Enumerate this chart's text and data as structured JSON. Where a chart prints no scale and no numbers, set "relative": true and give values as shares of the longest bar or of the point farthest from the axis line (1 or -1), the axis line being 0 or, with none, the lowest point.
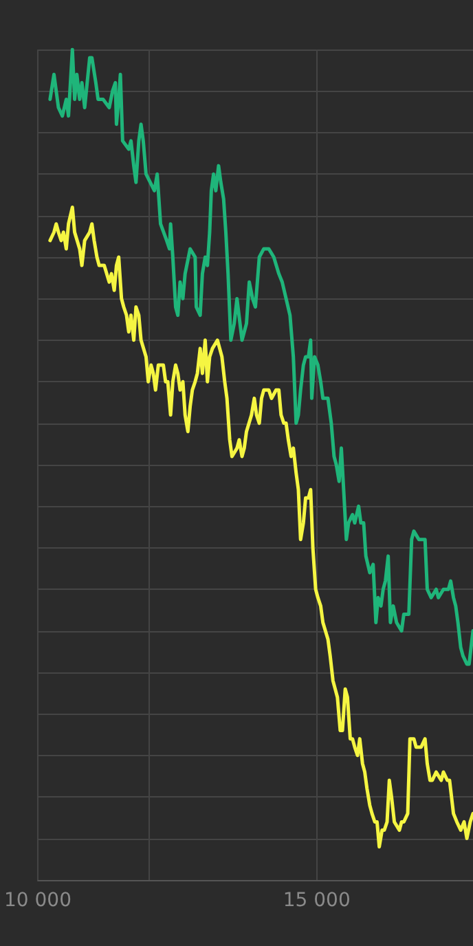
{
  "chart_data": {
    "type": "line",
    "relative": true,
    "grid": true,
    "marker": "none",
    "line_style": "solid",
    "xlim": [
      10000,
      17800
    ],
    "xticks": [
      {
        "value": 10000,
        "label": "10 000"
      },
      {
        "value": 15000,
        "label": "15 000"
      }
    ],
    "series": [
      {
        "color": "#1fb57a",
        "x": [
          10220,
          10290,
          10370,
          10440,
          10510,
          10550,
          10620,
          10660,
          10700,
          10750,
          10790,
          10840,
          10930,
          10970,
          11040,
          11080,
          11170,
          11280,
          11340,
          11390,
          11410,
          11450,
          11480,
          11520,
          11630,
          11670,
          11720,
          11760,
          11810,
          11850,
          11890,
          11940,
          12090,
          12140,
          12200,
          12310,
          12360,
          12380,
          12420,
          12470,
          12510,
          12550,
          12600,
          12640,
          12730,
          12820,
          12840,
          12910,
          12950,
          13000,
          13040,
          13080,
          13110,
          13150,
          13190,
          13240,
          13280,
          13330,
          13370,
          13410,
          13460,
          13520,
          13570,
          13660,
          13740,
          13790,
          13850,
          13900,
          13970,
          14050,
          14140,
          14230,
          14320,
          14380,
          14450,
          14520,
          14580,
          14630,
          14670,
          14710,
          14760,
          14800,
          14850,
          14890,
          14910,
          14960,
          15020,
          15070,
          15110,
          15200,
          15260,
          15310,
          15350,
          15400,
          15440,
          15490,
          15530,
          15570,
          15640,
          15680,
          15750,
          15790,
          15840,
          15880,
          15950,
          16010,
          16060,
          16100,
          16150,
          16190,
          16230,
          16280,
          16320,
          16370,
          16430,
          16520,
          16560,
          16650,
          16700,
          16740,
          16830,
          16870,
          16940,
          16980,
          17050,
          17140,
          17180,
          17270,
          17360,
          17400,
          17450,
          17490,
          17530,
          17580,
          17620,
          17690,
          17730,
          17800
        ],
        "values": [
          0.94,
          0.97,
          0.93,
          0.92,
          0.94,
          0.92,
          1,
          0.94,
          0.97,
          0.94,
          0.96,
          0.93,
          0.99,
          0.99,
          0.96,
          0.94,
          0.94,
          0.93,
          0.95,
          0.96,
          0.91,
          0.94,
          0.97,
          0.89,
          0.88,
          0.89,
          0.86,
          0.84,
          0.89,
          0.91,
          0.89,
          0.85,
          0.83,
          0.85,
          0.79,
          0.77,
          0.76,
          0.79,
          0.75,
          0.69,
          0.68,
          0.72,
          0.7,
          0.73,
          0.76,
          0.75,
          0.69,
          0.68,
          0.73,
          0.75,
          0.74,
          0.78,
          0.83,
          0.85,
          0.83,
          0.86,
          0.84,
          0.82,
          0.78,
          0.73,
          0.65,
          0.67,
          0.7,
          0.65,
          0.67,
          0.72,
          0.7,
          0.69,
          0.75,
          0.76,
          0.76,
          0.75,
          0.73,
          0.72,
          0.7,
          0.68,
          0.63,
          0.55,
          0.56,
          0.59,
          0.62,
          0.63,
          0.63,
          0.65,
          0.58,
          0.63,
          0.62,
          0.6,
          0.58,
          0.58,
          0.55,
          0.51,
          0.5,
          0.48,
          0.52,
          0.46,
          0.41,
          0.43,
          0.44,
          0.43,
          0.45,
          0.43,
          0.43,
          0.39,
          0.37,
          0.38,
          0.31,
          0.34,
          0.33,
          0.35,
          0.36,
          0.39,
          0.31,
          0.33,
          0.31,
          0.3,
          0.32,
          0.32,
          0.41,
          0.42,
          0.41,
          0.41,
          0.41,
          0.35,
          0.34,
          0.35,
          0.34,
          0.35,
          0.35,
          0.36,
          0.34,
          0.33,
          0.31,
          0.28,
          0.27,
          0.26,
          0.26,
          0.3
        ]
      },
      {
        "color": "#f5f542",
        "x": [
          10220,
          10290,
          10330,
          10370,
          10420,
          10460,
          10510,
          10550,
          10620,
          10660,
          10750,
          10790,
          10840,
          10930,
          10970,
          11010,
          11060,
          11100,
          11190,
          11280,
          11320,
          11370,
          11410,
          11450,
          11500,
          11540,
          11590,
          11630,
          11670,
          11720,
          11760,
          11810,
          11850,
          11940,
          11980,
          12030,
          12070,
          12110,
          12160,
          12250,
          12290,
          12330,
          12380,
          12420,
          12470,
          12510,
          12550,
          12600,
          12640,
          12690,
          12730,
          12770,
          12820,
          12860,
          12910,
          12950,
          13000,
          13040,
          13080,
          13130,
          13220,
          13260,
          13300,
          13350,
          13390,
          13440,
          13480,
          13570,
          13610,
          13660,
          13700,
          13740,
          13830,
          13880,
          13920,
          13970,
          14010,
          14050,
          14100,
          14140,
          14190,
          14270,
          14320,
          14360,
          14410,
          14450,
          14490,
          14540,
          14580,
          14630,
          14670,
          14710,
          14760,
          14800,
          14850,
          14890,
          14930,
          14980,
          15020,
          15070,
          15110,
          15200,
          15240,
          15290,
          15330,
          15370,
          15420,
          15460,
          15510,
          15550,
          15600,
          15640,
          15680,
          15730,
          15770,
          15820,
          15860,
          15900,
          15950,
          15990,
          16040,
          16080,
          16120,
          16170,
          16210,
          16260,
          16300,
          16340,
          16390,
          16480,
          16520,
          16560,
          16630,
          16670,
          16740,
          16780,
          16830,
          16870,
          16940,
          16980,
          17030,
          17070,
          17140,
          17230,
          17270,
          17340,
          17380,
          17450,
          17510,
          17580,
          17640,
          17690,
          17750,
          17800
        ],
        "values": [
          0.77,
          0.78,
          0.79,
          0.78,
          0.77,
          0.78,
          0.76,
          0.79,
          0.81,
          0.78,
          0.76,
          0.74,
          0.77,
          0.78,
          0.79,
          0.77,
          0.75,
          0.74,
          0.74,
          0.72,
          0.73,
          0.71,
          0.74,
          0.75,
          0.7,
          0.69,
          0.68,
          0.66,
          0.68,
          0.65,
          0.69,
          0.68,
          0.65,
          0.63,
          0.6,
          0.62,
          0.61,
          0.59,
          0.62,
          0.62,
          0.6,
          0.6,
          0.56,
          0.6,
          0.62,
          0.61,
          0.59,
          0.6,
          0.56,
          0.54,
          0.57,
          0.59,
          0.6,
          0.61,
          0.64,
          0.61,
          0.65,
          0.6,
          0.63,
          0.64,
          0.65,
          0.64,
          0.63,
          0.6,
          0.58,
          0.53,
          0.51,
          0.52,
          0.53,
          0.51,
          0.52,
          0.54,
          0.56,
          0.58,
          0.56,
          0.55,
          0.58,
          0.59,
          0.59,
          0.59,
          0.58,
          0.59,
          0.59,
          0.56,
          0.55,
          0.55,
          0.53,
          0.51,
          0.52,
          0.49,
          0.47,
          0.41,
          0.43,
          0.46,
          0.46,
          0.47,
          0.4,
          0.35,
          0.34,
          0.33,
          0.31,
          0.29,
          0.27,
          0.24,
          0.23,
          0.22,
          0.18,
          0.18,
          0.23,
          0.22,
          0.17,
          0.17,
          0.16,
          0.15,
          0.17,
          0.14,
          0.13,
          0.11,
          0.09,
          0.08,
          0.07,
          0.07,
          0.04,
          0.06,
          0.06,
          0.07,
          0.12,
          0.1,
          0.07,
          0.06,
          0.07,
          0.07,
          0.08,
          0.17,
          0.17,
          0.16,
          0.16,
          0.16,
          0.17,
          0.14,
          0.12,
          0.12,
          0.13,
          0.12,
          0.13,
          0.12,
          0.12,
          0.08,
          0.07,
          0.06,
          0.07,
          0.05,
          0.07,
          0.08
        ]
      }
    ]
  }
}
